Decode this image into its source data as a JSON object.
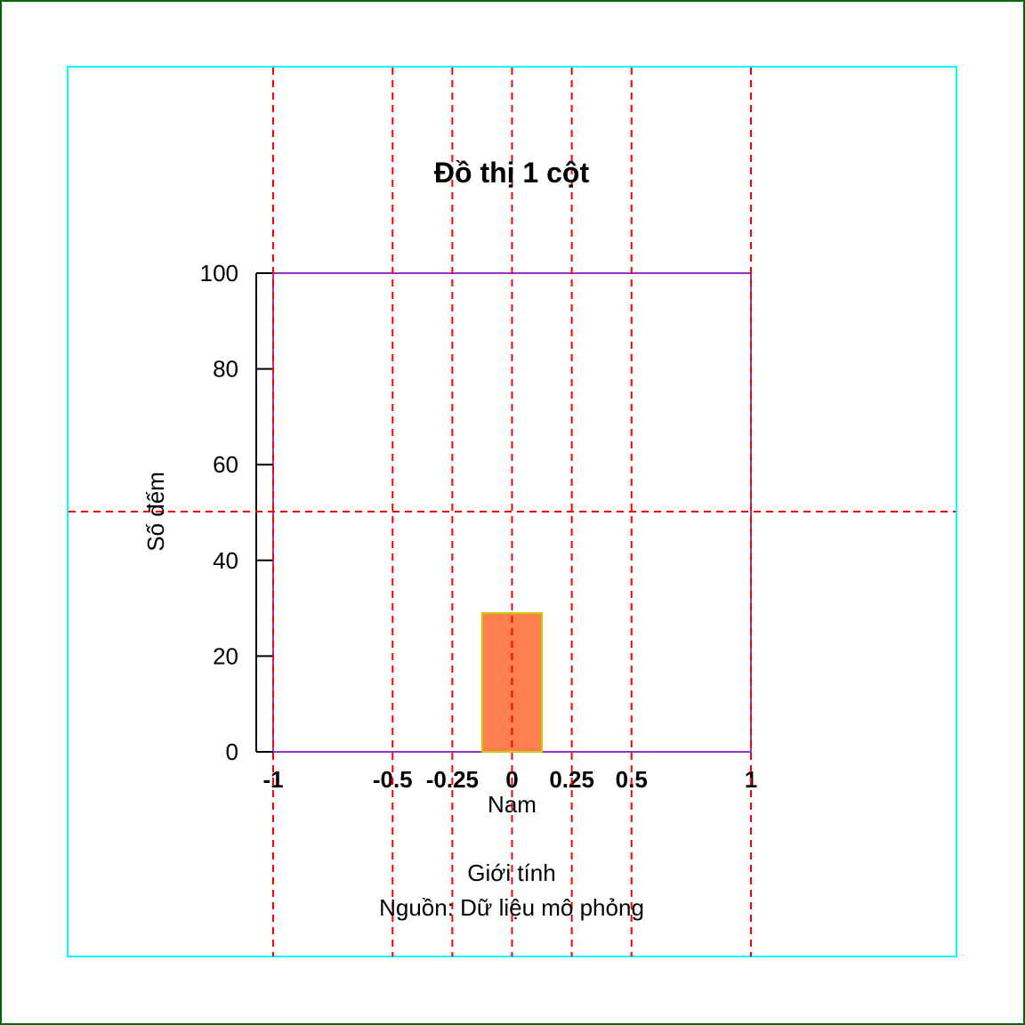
{
  "chart_data": {
    "type": "bar",
    "title": "Đồ thị 1 cột",
    "ylabel": "Số đếm",
    "xlabel": "Giới tính",
    "caption": "Nguồn: Dữ liệu mô phỏng",
    "categories": [
      "Nam"
    ],
    "bars": [
      {
        "category": "Nam",
        "x": 0,
        "value": 29
      }
    ],
    "bar_width": 0.25,
    "xlim": [
      -1,
      1
    ],
    "ylim": [
      0,
      100
    ],
    "x_ticks": [
      {
        "value": -1,
        "label": "-1"
      },
      {
        "value": -0.5,
        "label": "-0.5"
      },
      {
        "value": -0.25,
        "label": "-0.25"
      },
      {
        "value": 0,
        "label": "0"
      },
      {
        "value": 0.25,
        "label": "0.25"
      },
      {
        "value": 0.5,
        "label": "0.5"
      },
      {
        "value": 1,
        "label": "1"
      }
    ],
    "y_ticks": [
      {
        "value": 0,
        "label": "0"
      },
      {
        "value": 20,
        "label": "20"
      },
      {
        "value": 40,
        "label": "40"
      },
      {
        "value": 60,
        "label": "60"
      },
      {
        "value": 80,
        "label": "80"
      },
      {
        "value": 100,
        "label": "100"
      }
    ],
    "colors": {
      "bar_fill": "#ff7f50",
      "bar_border": "#cccc00",
      "plot_box": "#9932cc",
      "guide_lines": "#ff0000",
      "figure_border": "#00ffff",
      "outer_border": "#006400"
    }
  }
}
